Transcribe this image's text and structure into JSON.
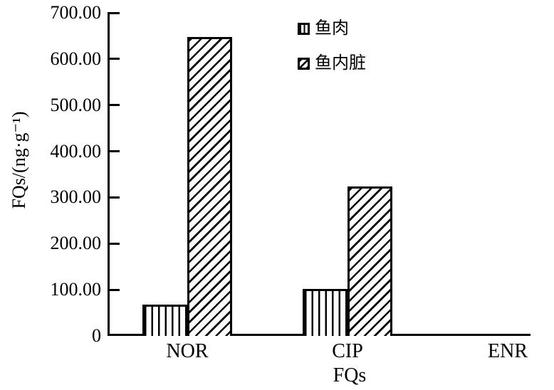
{
  "chart_data": {
    "type": "bar",
    "title": "",
    "xlabel": "FQs",
    "ylabel": "FQs/(ng·g⁻¹)",
    "categories": [
      "NOR",
      "CIP",
      "ENR"
    ],
    "series": [
      {
        "name": "鱼肉",
        "hatch": "vertical-lines",
        "values": [
          68,
          102,
          0
        ]
      },
      {
        "name": "鱼内脏",
        "hatch": "diagonal-lines",
        "values": [
          648,
          324,
          0
        ]
      }
    ],
    "ylim": [
      0,
      700
    ],
    "yticks": {
      "values": [
        700,
        600,
        500,
        400,
        300,
        200,
        100,
        0
      ],
      "labels": [
        "700.00",
        "600.00",
        "500.00",
        "400.00",
        "300.00",
        "200.00",
        "100.00",
        "0"
      ]
    },
    "grid": false,
    "legend_position": "upper-center",
    "colors": {
      "ink": "#000000",
      "background": "#ffffff"
    }
  }
}
